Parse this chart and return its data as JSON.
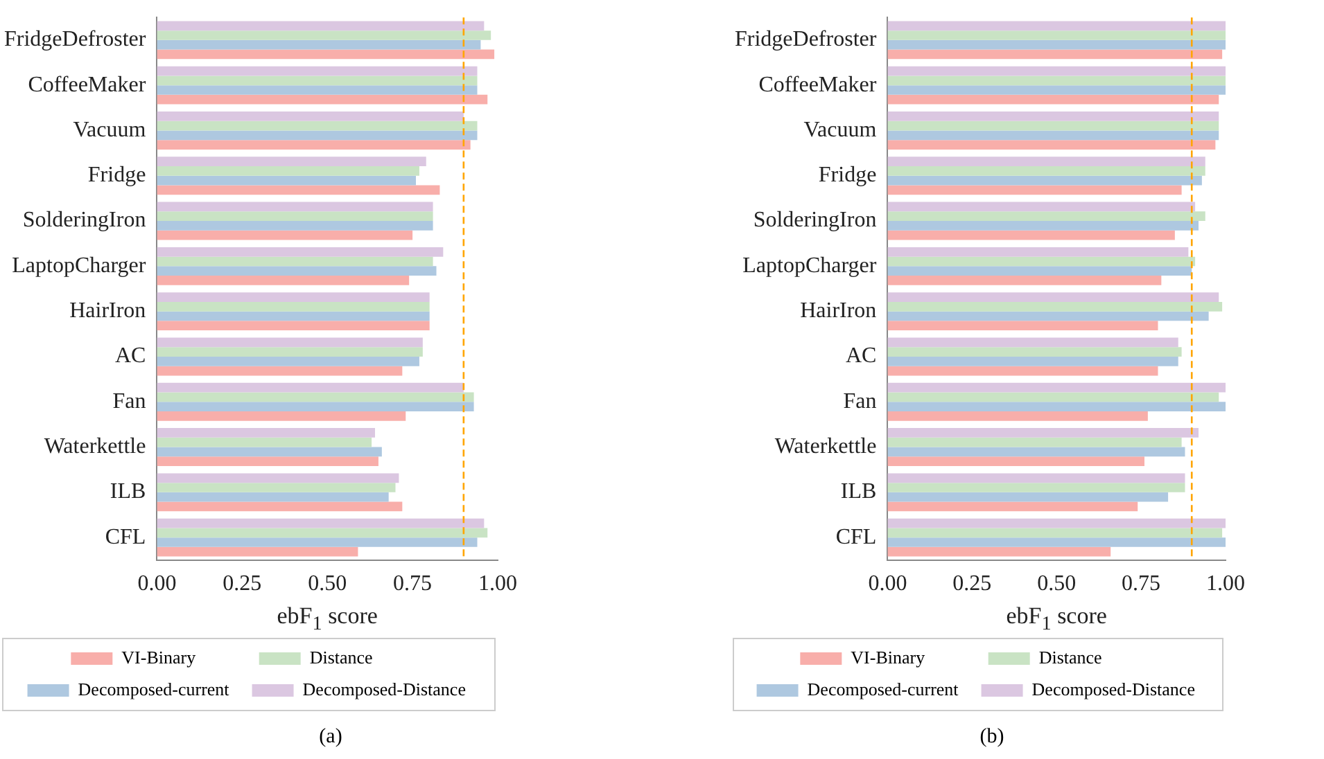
{
  "chart_data": [
    {
      "type": "bar",
      "orientation": "horizontal",
      "categories": [
        "FridgeDefroster",
        "CoffeeMaker",
        "Vacuum",
        "Fridge",
        "SolderingIron",
        "LaptopCharger",
        "HairIron",
        "AC",
        "Fan",
        "Waterkettle",
        "ILB",
        "CFL"
      ],
      "xlabel": "ebF$_{1}$ score",
      "xlim": [
        0,
        1
      ],
      "xticks": [
        {
          "value": 0,
          "label": "0.00"
        },
        {
          "value": 0.25,
          "label": "0.25"
        },
        {
          "value": 0.5,
          "label": "0.50"
        },
        {
          "value": 0.75,
          "label": "0.75"
        },
        {
          "value": 1,
          "label": "1.00"
        }
      ],
      "grid": false,
      "legend": "bottom",
      "annotations": [
        "(a)"
      ],
      "ref_lines": [
        {
          "axis": "x",
          "value": 0.9,
          "color": "#ffa500",
          "line_style": "dashed"
        }
      ],
      "series": [
        {
          "name": "VI-Binary",
          "color": "#f8aeaa",
          "values": [
            0.99,
            0.97,
            0.92,
            0.83,
            0.75,
            0.74,
            0.8,
            0.72,
            0.73,
            0.65,
            0.72,
            0.59
          ]
        },
        {
          "name": "Decomposed-current",
          "color": "#aec8e0",
          "values": [
            0.95,
            0.94,
            0.94,
            0.76,
            0.81,
            0.82,
            0.8,
            0.77,
            0.93,
            0.66,
            0.68,
            0.94
          ]
        },
        {
          "name": "Distance",
          "color": "#c9e3c4",
          "values": [
            0.98,
            0.94,
            0.94,
            0.77,
            0.81,
            0.81,
            0.8,
            0.78,
            0.93,
            0.63,
            0.7,
            0.97
          ]
        },
        {
          "name": "Decomposed-Distance",
          "color": "#dbc7e1",
          "values": [
            0.96,
            0.94,
            0.9,
            0.79,
            0.81,
            0.84,
            0.8,
            0.78,
            0.9,
            0.64,
            0.71,
            0.96
          ]
        }
      ]
    },
    {
      "type": "bar",
      "orientation": "horizontal",
      "categories": [
        "FridgeDefroster",
        "CoffeeMaker",
        "Vacuum",
        "Fridge",
        "SolderingIron",
        "LaptopCharger",
        "HairIron",
        "AC",
        "Fan",
        "Waterkettle",
        "ILB",
        "CFL"
      ],
      "xlabel": "ebF$_{1}$ score",
      "xlim": [
        0,
        1
      ],
      "xticks": [
        {
          "value": 0,
          "label": "0.00"
        },
        {
          "value": 0.25,
          "label": "0.25"
        },
        {
          "value": 0.5,
          "label": "0.50"
        },
        {
          "value": 0.75,
          "label": "0.75"
        },
        {
          "value": 1,
          "label": "1.00"
        }
      ],
      "grid": false,
      "legend": "bottom",
      "annotations": [
        "(b)"
      ],
      "ref_lines": [
        {
          "axis": "x",
          "value": 0.9,
          "color": "#ffa500",
          "line_style": "dashed"
        }
      ],
      "series": [
        {
          "name": "VI-Binary",
          "color": "#f8aeaa",
          "values": [
            0.99,
            0.98,
            0.97,
            0.87,
            0.85,
            0.81,
            0.8,
            0.8,
            0.77,
            0.76,
            0.74,
            0.66
          ]
        },
        {
          "name": "Decomposed-current",
          "color": "#aec8e0",
          "values": [
            1.0,
            1.0,
            0.98,
            0.93,
            0.92,
            0.9,
            0.95,
            0.86,
            1.0,
            0.88,
            0.83,
            1.0
          ]
        },
        {
          "name": "Distance",
          "color": "#c9e3c4",
          "values": [
            1.0,
            1.0,
            0.98,
            0.94,
            0.94,
            0.91,
            0.99,
            0.87,
            0.98,
            0.87,
            0.88,
            0.99
          ]
        },
        {
          "name": "Decomposed-Distance",
          "color": "#dbc7e1",
          "values": [
            1.0,
            1.0,
            0.98,
            0.94,
            0.91,
            0.89,
            0.98,
            0.86,
            1.0,
            0.92,
            0.88,
            1.0
          ]
        }
      ]
    }
  ]
}
